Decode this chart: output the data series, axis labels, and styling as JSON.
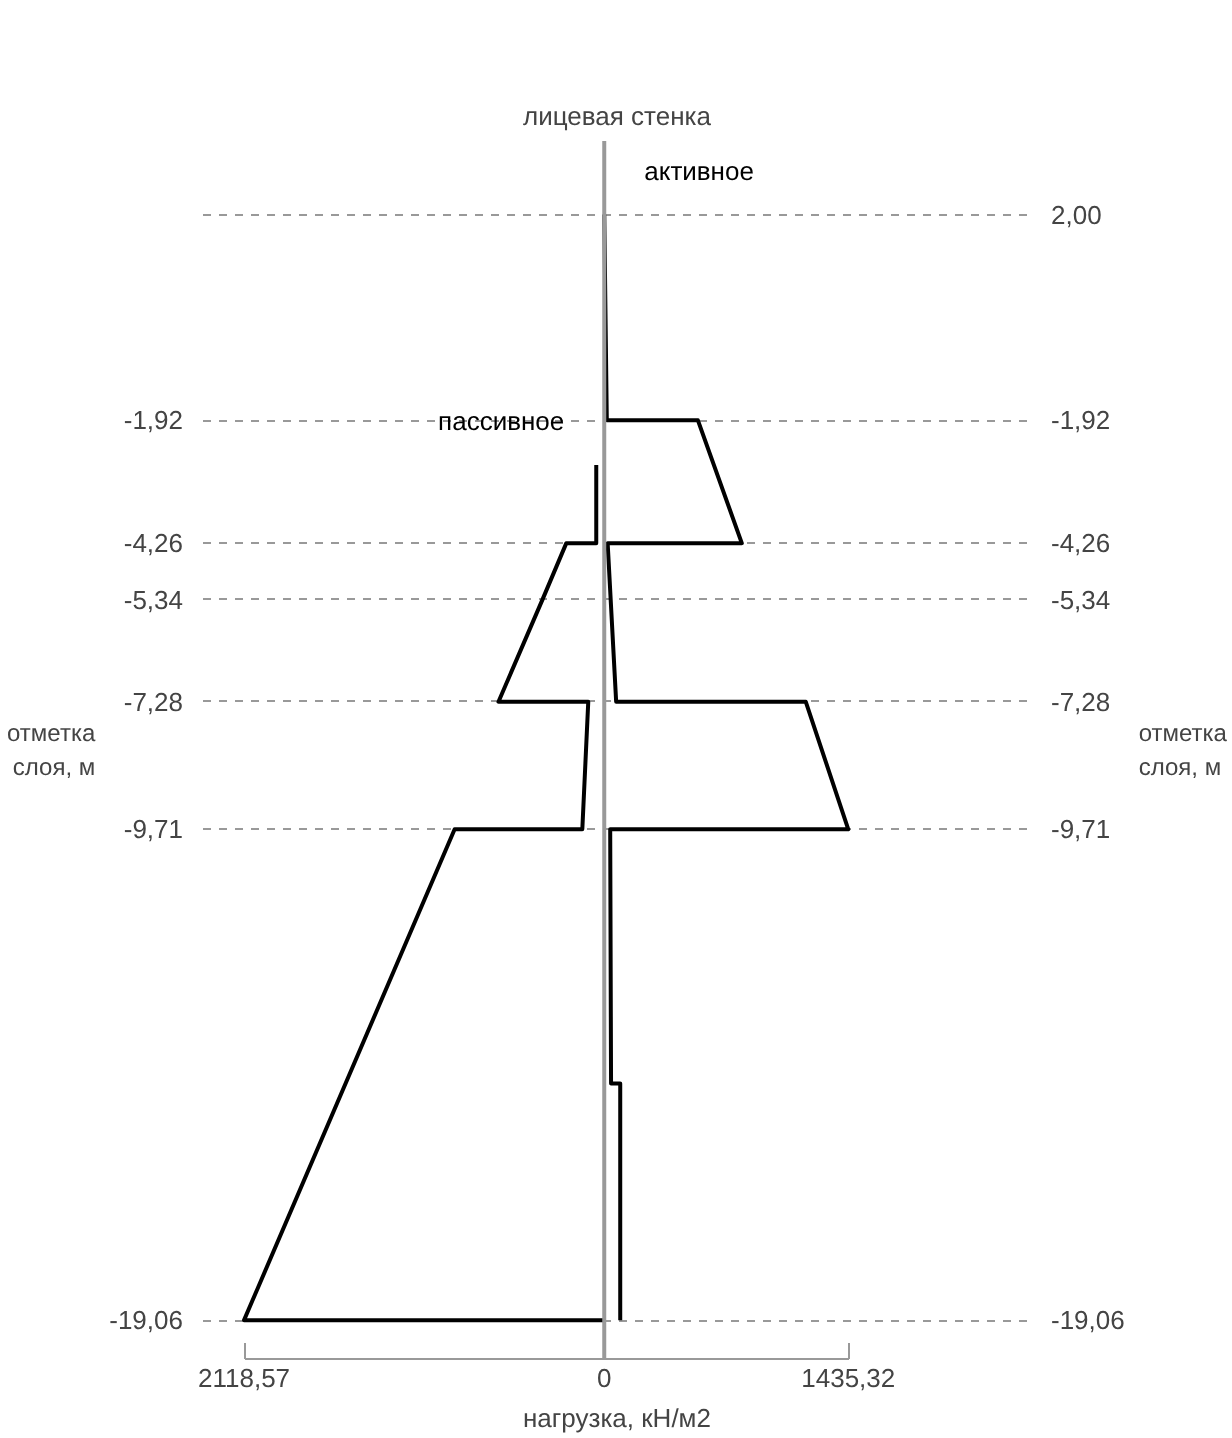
{
  "chart_data": {
    "type": "line",
    "title": "лицевая стенка",
    "xlabel": "нагрузка, кН/м2",
    "ylabel": "отметка слоя, м",
    "y2label": "отметка слоя, м",
    "series": [
      {
        "name": "пассивное",
        "color": "#000000",
        "x": [
          -47,
          -47,
          -223,
          -364,
          -622,
          -94,
          -129,
          -880,
          -2118.57,
          0
        ],
        "values": [
          -2.77,
          -4.26,
          -4.26,
          -5.34,
          -7.28,
          -7.28,
          -9.71,
          -9.71,
          -19.06,
          -19.06
        ]
      },
      {
        "name": "активное",
        "color": "#000000",
        "x": [
          0,
          15,
          551,
          809,
          20,
          70,
          1185,
          1435.32,
          35,
          40,
          94,
          94
        ],
        "values": [
          2.0,
          -1.92,
          -1.92,
          -4.26,
          -4.26,
          -7.28,
          -7.28,
          -9.71,
          -9.71,
          -14.55,
          -14.55,
          -19.06
        ]
      }
    ],
    "xlim": [
      -2360,
      2510
    ],
    "xticks": [
      {
        "value": -2118.57,
        "label": "2118,57"
      },
      0,
      {
        "value": 1435.32,
        "label": "1435,32"
      }
    ],
    "ylim": [
      -19.8,
      3.4
    ],
    "yticks": [
      {
        "value": -1.92,
        "label": "-1,92"
      },
      {
        "value": -4.26,
        "label": "-4,26"
      },
      {
        "value": -5.34,
        "label": "-5,34"
      },
      {
        "value": -7.28,
        "label": "-7,28"
      },
      {
        "value": -9.71,
        "label": "-9,71"
      },
      {
        "value": -19.06,
        "label": "-19,06"
      }
    ],
    "y2lim": [
      -19.8,
      3.4
    ],
    "y2ticks": [
      {
        "value": 2.0,
        "label": "2,00"
      },
      {
        "value": -1.92,
        "label": "-1,92"
      },
      {
        "value": -4.26,
        "label": "-4,26"
      },
      {
        "value": -5.34,
        "label": "-5,34"
      },
      {
        "value": -7.28,
        "label": "-7,28"
      },
      {
        "value": -9.71,
        "label": "-9,71"
      },
      {
        "value": -19.06,
        "label": "-19,06"
      }
    ],
    "grid": "y",
    "line_style": "solid",
    "marker": "none",
    "ref_lines": [
      {
        "axis": "x",
        "value": 0,
        "color": "#999999"
      }
    ]
  }
}
